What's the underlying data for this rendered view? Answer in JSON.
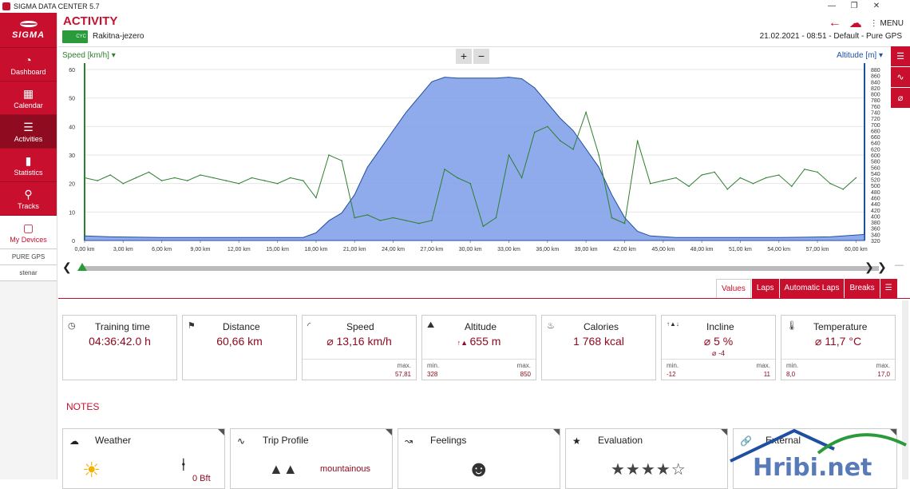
{
  "window": {
    "title": "SIGMA DATA CENTER 5.7"
  },
  "sidebar": {
    "logo": "SIGMA",
    "items": [
      {
        "label": "Dashboard",
        "icon": "dashboard-icon"
      },
      {
        "label": "Calendar",
        "icon": "calendar-icon"
      },
      {
        "label": "Activities",
        "icon": "list-icon"
      },
      {
        "label": "Statistics",
        "icon": "bar-chart-icon"
      },
      {
        "label": "Tracks",
        "icon": "map-pin-icon"
      },
      {
        "label": "My Devices",
        "icon": "devices-icon"
      }
    ],
    "device": "PURE GPS",
    "user": "stenar"
  },
  "header": {
    "title": "ACTIVITY",
    "sport_badge": "CYC",
    "activity_name": "Rakitna-jezero",
    "meta": "21.02.2021  -  08:51  -  Default  -  Pure GPS",
    "menu_label": "MENU"
  },
  "chart_data": {
    "type": "line",
    "left_axis_label": "Speed [km/h]",
    "right_axis_label": "Altitude [m]",
    "x_ticks": [
      "0,00 km",
      "3,00 km",
      "6,00 km",
      "9,00 km",
      "12,00 km",
      "15,00 km",
      "18,00 km",
      "21,00 km",
      "24,00 km",
      "27,00 km",
      "30,00 km",
      "33,00 km",
      "36,00 km",
      "39,00 km",
      "42,00 km",
      "45,00 km",
      "48,00 km",
      "51,00 km",
      "54,00 km",
      "57,00 km",
      "60,00 km"
    ],
    "y_left_ticks": [
      "0",
      "10",
      "20",
      "30",
      "40",
      "50",
      "60"
    ],
    "y_right_ticks": [
      "320",
      "340",
      "360",
      "380",
      "400",
      "420",
      "440",
      "460",
      "480",
      "500",
      "520",
      "540",
      "560",
      "580",
      "600",
      "620",
      "640",
      "660",
      "680",
      "700",
      "720",
      "740",
      "760",
      "780",
      "800",
      "820",
      "840",
      "860",
      "880"
    ],
    "xlim": [
      0,
      60.66
    ],
    "ylim_left": [
      0,
      60
    ],
    "ylim_right": [
      320,
      880
    ],
    "series": [
      {
        "name": "Altitude [m]",
        "axis": "right",
        "color": "#7d9ce8",
        "x": [
          0,
          2,
          6,
          10,
          14,
          17,
          18,
          19,
          20,
          21,
          22,
          23,
          24,
          25,
          26,
          27,
          28,
          29,
          30,
          31,
          32,
          33,
          34,
          35,
          36,
          37,
          38,
          39,
          40,
          41,
          42,
          43,
          44,
          46,
          50,
          54,
          58,
          60.66
        ],
        "values": [
          335,
          332,
          330,
          330,
          330,
          330,
          345,
          385,
          410,
          470,
          560,
          620,
          680,
          740,
          790,
          840,
          855,
          852,
          852,
          852,
          852,
          855,
          850,
          820,
          770,
          720,
          680,
          620,
          560,
          470,
          395,
          350,
          335,
          330,
          330,
          330,
          332,
          340
        ]
      },
      {
        "name": "Speed [km/h]",
        "axis": "left",
        "color": "#2d7f2d",
        "x": [
          0,
          1,
          2,
          3,
          4,
          5,
          6,
          7,
          8,
          9,
          10,
          11,
          12,
          13,
          14,
          15,
          16,
          17,
          18,
          19,
          20,
          21,
          22,
          23,
          24,
          25,
          26,
          27,
          28,
          29,
          30,
          31,
          32,
          33,
          34,
          35,
          36,
          37,
          38,
          39,
          40,
          41,
          42,
          43,
          44,
          45,
          46,
          47,
          48,
          49,
          50,
          51,
          52,
          53,
          54,
          55,
          56,
          57,
          58,
          59,
          60
        ],
        "values": [
          22,
          21,
          23,
          20,
          22,
          24,
          21,
          22,
          21,
          23,
          22,
          21,
          20,
          22,
          21,
          20,
          22,
          21,
          15,
          30,
          28,
          8,
          9,
          7,
          8,
          7,
          6,
          7,
          25,
          22,
          20,
          5,
          8,
          30,
          22,
          38,
          40,
          35,
          32,
          45,
          30,
          8,
          6,
          35,
          20,
          21,
          22,
          19,
          23,
          24,
          18,
          22,
          20,
          22,
          23,
          19,
          25,
          24,
          20,
          18,
          22
        ]
      }
    ]
  },
  "zoom": {
    "plus": "+",
    "minus": "−"
  },
  "tabs": [
    "Values",
    "Laps",
    "Automatic Laps",
    "Breaks"
  ],
  "stats": [
    {
      "title": "Training time",
      "icon": "clock-icon",
      "value": "04:36:42.0 h"
    },
    {
      "title": "Distance",
      "icon": "flag-icon",
      "value": "60,66 km"
    },
    {
      "title": "Speed",
      "icon": "speedometer-icon",
      "value": "⌀ 13,16 km/h",
      "max_label": "max.",
      "max": "57,81"
    },
    {
      "title": "Altitude",
      "icon": "mountain-icon",
      "value": "655 m",
      "min_label": "min.",
      "min": "328",
      "max_label": "max.",
      "max": "850"
    },
    {
      "title": "Calories",
      "icon": "flame-icon",
      "value": "1 768 kcal"
    },
    {
      "title": "Incline",
      "icon": "incline-icon",
      "value": "⌀ 5 %",
      "value2": "⌀ -4",
      "min_label": "min.",
      "min": "-12",
      "max_label": "max.",
      "max": "11"
    },
    {
      "title": "Temperature",
      "icon": "thermometer-icon",
      "value": "⌀ 11,7 °C",
      "min_label": "min.",
      "min": "8,0",
      "max_label": "max.",
      "max": "17,0"
    }
  ],
  "notes": {
    "title": "NOTES",
    "cards": [
      {
        "title": "Weather",
        "value": "0 Bft"
      },
      {
        "title": "Trip Profile",
        "value": "mountainous"
      },
      {
        "title": "Feelings"
      },
      {
        "title": "Evaluation",
        "rating": 4,
        "out_of": 5
      },
      {
        "title": "External"
      }
    ]
  },
  "watermark": "Hribi.net"
}
